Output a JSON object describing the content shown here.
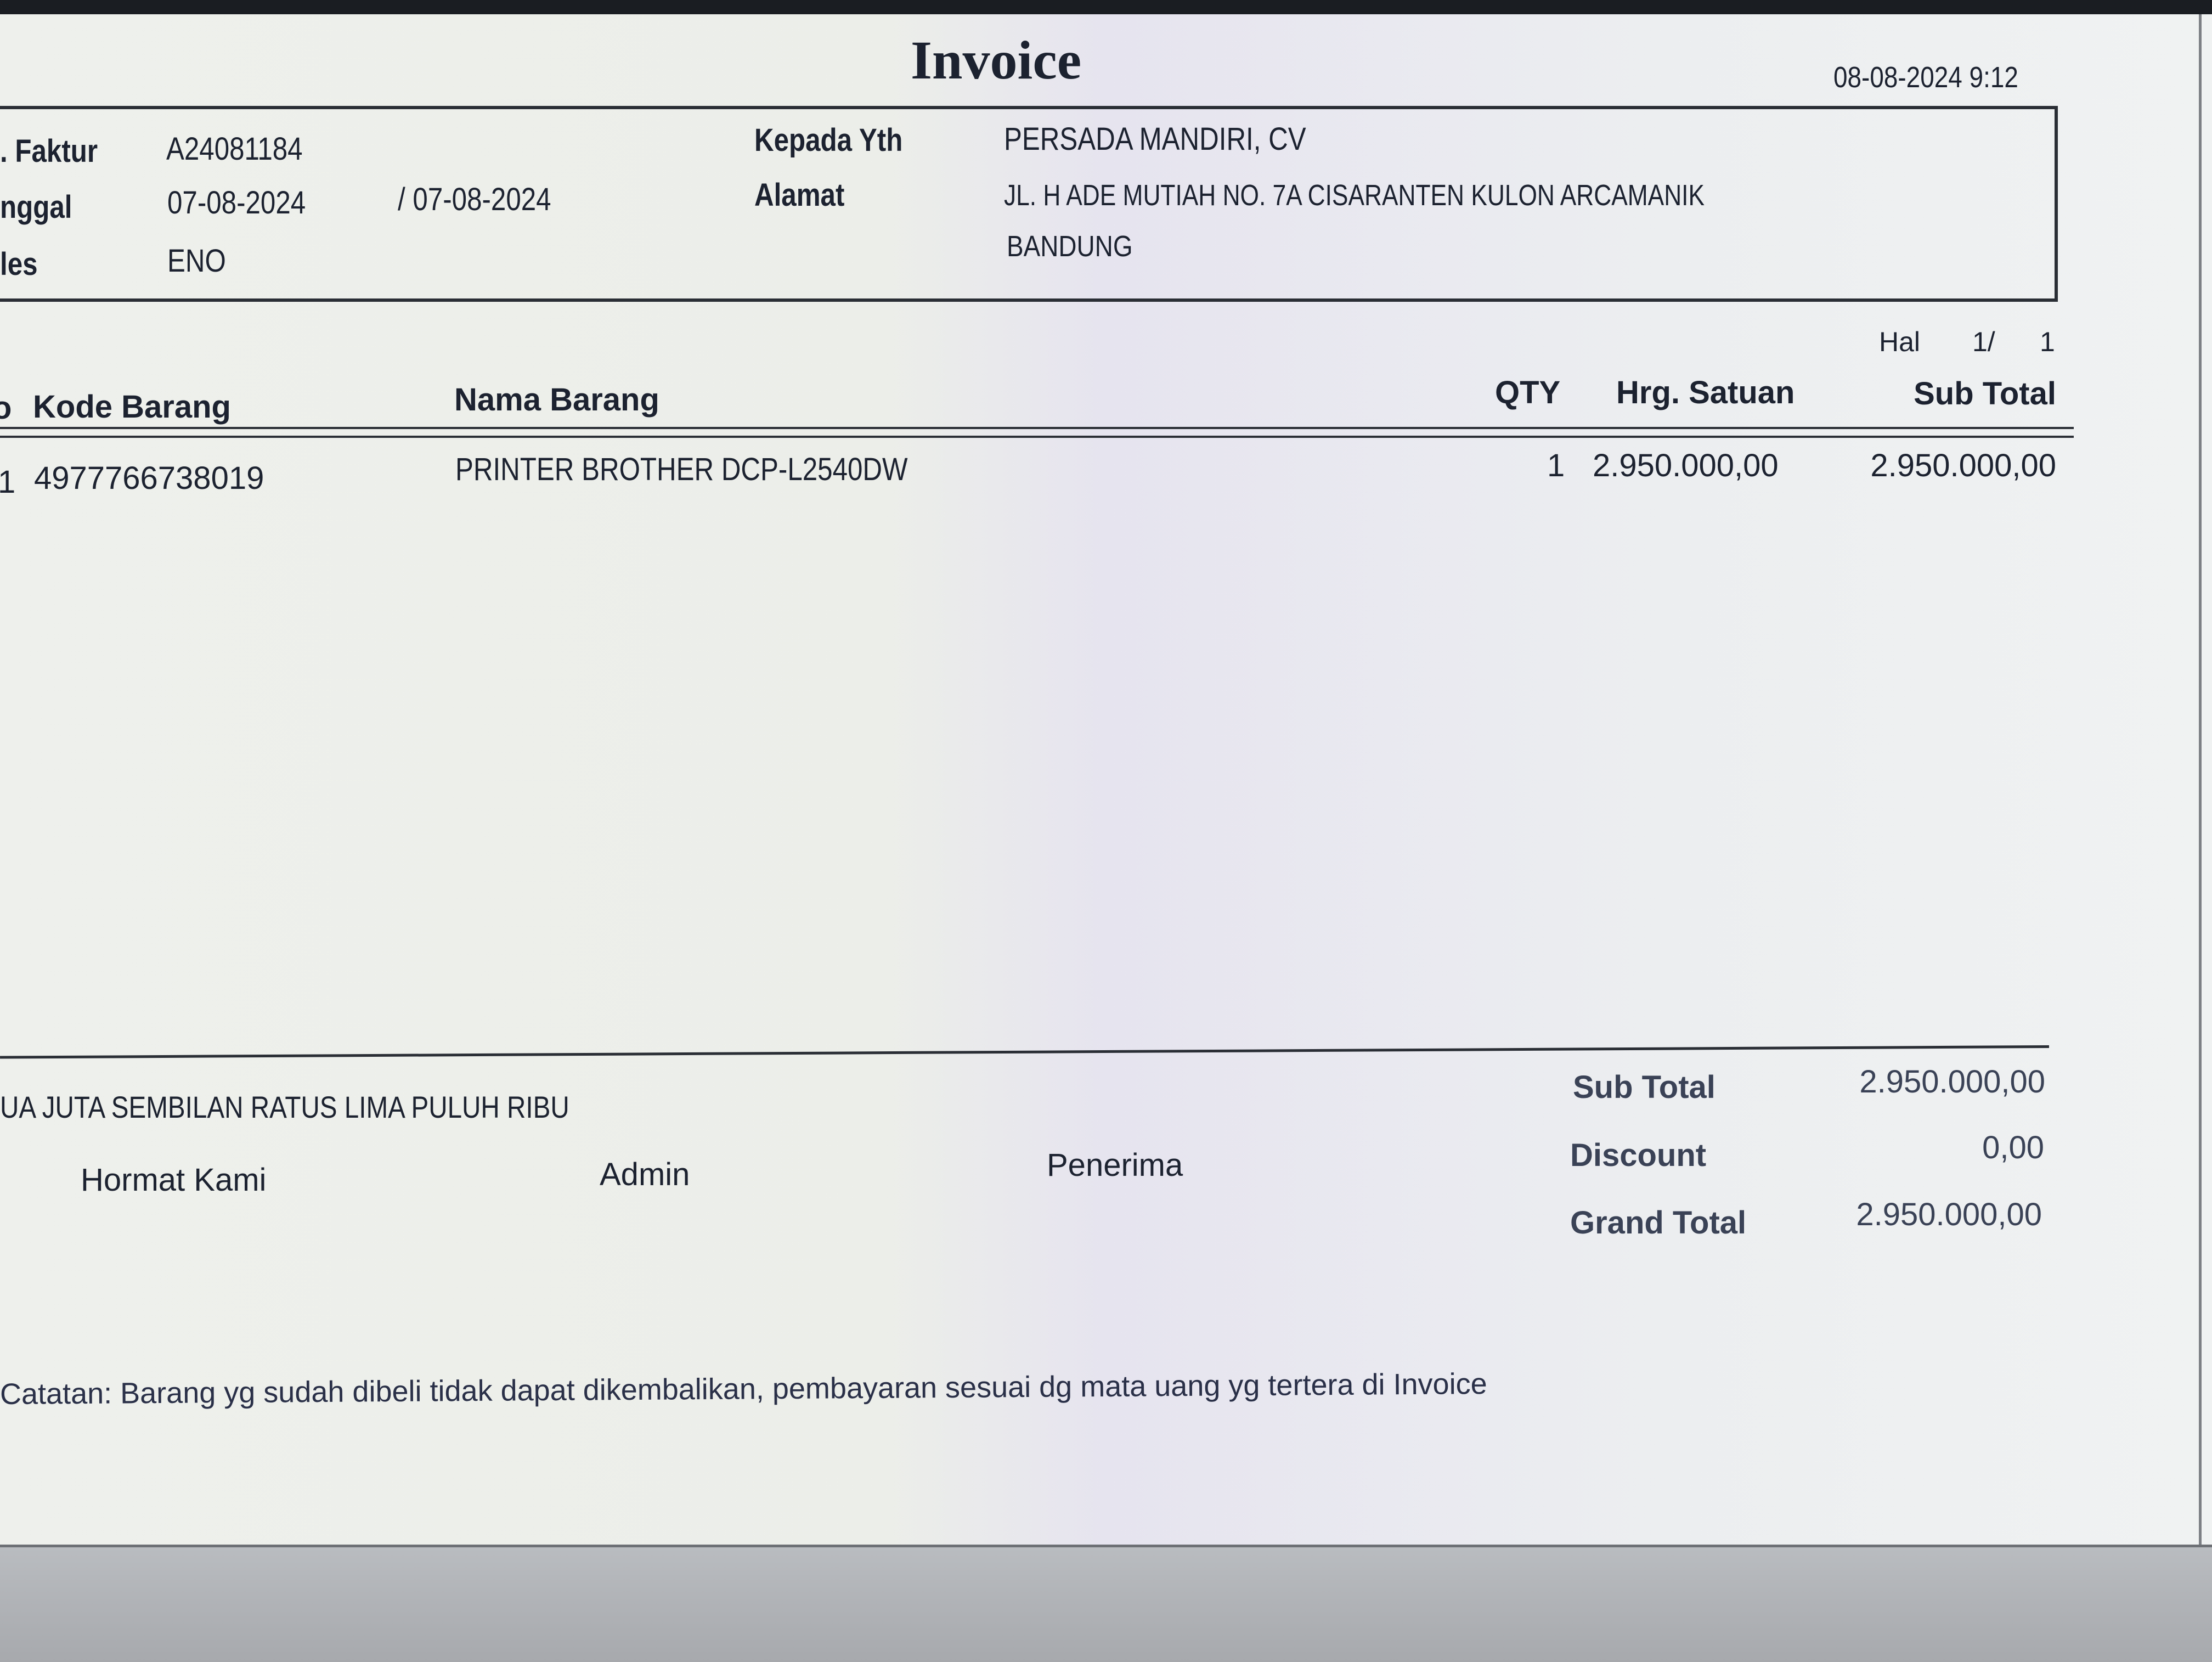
{
  "title": "Invoice",
  "printed_at": "08-08-2024 9:12",
  "header": {
    "faktur_label": ". Faktur",
    "faktur_value": "A24081184",
    "tanggal_label": "nggal",
    "tanggal_value": "07-08-2024",
    "tanggal_value2": "/ 07-08-2024",
    "sales_label": "les",
    "sales_value": "ENO",
    "kepada_label": "Kepada Yth",
    "kepada_value": "PERSADA MANDIRI, CV",
    "alamat_label": "Alamat",
    "alamat_line1": "JL. H ADE MUTIAH NO. 7A CISARANTEN KULON ARCAMANIK",
    "alamat_line2": "BANDUNG"
  },
  "page": {
    "label": "Hal",
    "current": "1/",
    "total": "1"
  },
  "table": {
    "columns": {
      "no": "o",
      "kode": "Kode Barang",
      "nama": "Nama Barang",
      "qty": "QTY",
      "harga": "Hrg. Satuan",
      "subtotal": "Sub Total"
    },
    "rows": [
      {
        "no": "1",
        "kode": "4977766738019",
        "nama": "PRINTER BROTHER DCP-L2540DW",
        "qty": "1",
        "harga": "2.950.000,00",
        "subtotal": "2.950.000,00"
      }
    ]
  },
  "terbilang": "UA JUTA SEMBILAN RATUS LIMA PULUH RIBU",
  "signatures": {
    "hormat": "Hormat Kami",
    "admin": "Admin",
    "penerima": "Penerima"
  },
  "totals": {
    "subtotal_label": "Sub Total",
    "subtotal_value": "2.950.000,00",
    "discount_label": "Discount",
    "discount_value": "0,00",
    "grand_label": "Grand Total",
    "grand_value": "2.950.000,00"
  },
  "note": "Catatan: Barang yg sudah dibeli tidak dapat dikembalikan, pembayaran sesuai dg mata uang yg tertera di Invoice"
}
